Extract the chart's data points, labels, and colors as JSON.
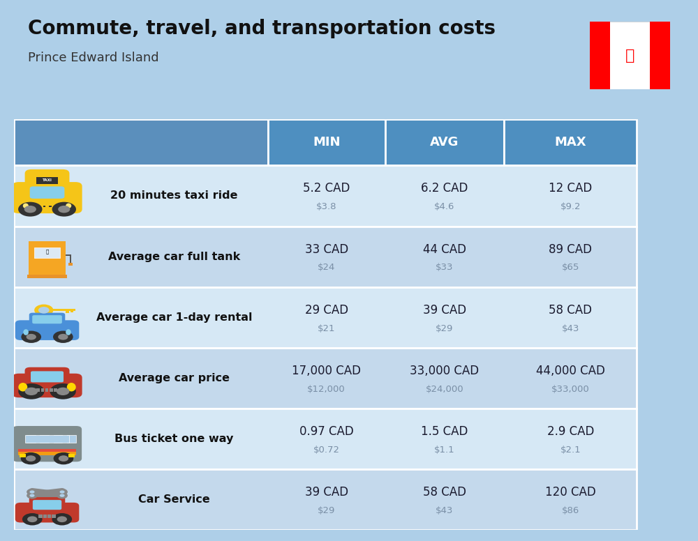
{
  "title": "Commute, travel, and transportation costs",
  "subtitle": "Prince Edward Island",
  "bg_color": "#aecfe8",
  "header_bg": "#4e8fc0",
  "header_text_color": "#ffffff",
  "row_bg_light": "#d0e6f5",
  "row_bg_dark": "#bdd5ea",
  "col_headers": [
    "MIN",
    "AVG",
    "MAX"
  ],
  "rows": [
    {
      "label": "20 minutes taxi ride",
      "min_cad": "5.2 CAD",
      "min_usd": "$3.8",
      "avg_cad": "6.2 CAD",
      "avg_usd": "$4.6",
      "max_cad": "12 CAD",
      "max_usd": "$9.2"
    },
    {
      "label": "Average car full tank",
      "min_cad": "33 CAD",
      "min_usd": "$24",
      "avg_cad": "44 CAD",
      "avg_usd": "$33",
      "max_cad": "89 CAD",
      "max_usd": "$65"
    },
    {
      "label": "Average car 1-day rental",
      "min_cad": "29 CAD",
      "min_usd": "$21",
      "avg_cad": "39 CAD",
      "avg_usd": "$29",
      "max_cad": "58 CAD",
      "max_usd": "$43"
    },
    {
      "label": "Average car price",
      "min_cad": "17,000 CAD",
      "min_usd": "$12,000",
      "avg_cad": "33,000 CAD",
      "avg_usd": "$24,000",
      "max_cad": "44,000 CAD",
      "max_usd": "$33,000"
    },
    {
      "label": "Bus ticket one way",
      "min_cad": "0.97 CAD",
      "min_usd": "$0.72",
      "avg_cad": "1.5 CAD",
      "avg_usd": "$1.1",
      "max_cad": "2.9 CAD",
      "max_usd": "$2.1"
    },
    {
      "label": "Car Service",
      "min_cad": "39 CAD",
      "min_usd": "$29",
      "avg_cad": "58 CAD",
      "avg_usd": "$43",
      "max_cad": "120 CAD",
      "max_usd": "$86"
    }
  ]
}
